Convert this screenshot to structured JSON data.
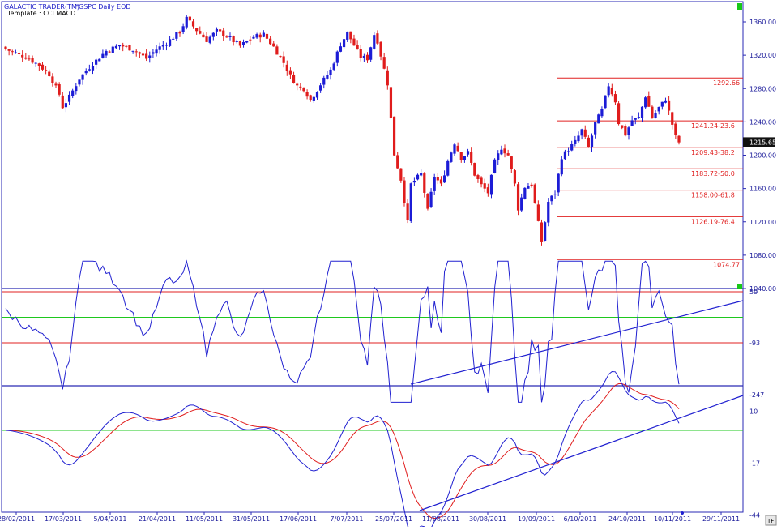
{
  "header": {
    "app": "GALACTIC TRADER(TM)",
    "symbol": "*GSPC Daily EOD",
    "template": "Template : CCI MACD"
  },
  "colors": {
    "up": "#1c1cd6",
    "down": "#e01c1c",
    "axis": "#2a2ab4",
    "fib": "#e02020",
    "green": "#1ec81e",
    "cci": "#2020d0",
    "signal": "#e01c1c"
  },
  "price_axis": {
    "ticks": [
      "1360.00",
      "1320.00",
      "1280.00",
      "1240.00",
      "1200.00",
      "1160.00",
      "1120.00",
      "1080.00",
      "1040.00"
    ],
    "tick_values": [
      1360,
      1320,
      1280,
      1240,
      1200,
      1160,
      1120,
      1080,
      1040
    ],
    "last_price": "1215.65",
    "last_value": 1215.65
  },
  "fib_levels": [
    {
      "label": "1292.66",
      "value": 1292.66
    },
    {
      "label": "1241.24-23.6",
      "value": 1241.24
    },
    {
      "label": "1209.43-38.2",
      "value": 1209.43
    },
    {
      "label": "1183.72-50.0",
      "value": 1183.72
    },
    {
      "label": "1158.00-61.8",
      "value": 1158.0
    },
    {
      "label": "1126.19-76.4",
      "value": 1126.19
    },
    {
      "label": "1074.77",
      "value": 1074.77
    }
  ],
  "cci_axis": {
    "ticks": [
      "59",
      "-93",
      "-247"
    ],
    "tick_values": [
      59,
      -93,
      -247
    ]
  },
  "macd_axis": {
    "ticks": [
      "10",
      "-17",
      "-44"
    ],
    "tick_values": [
      10,
      -17,
      -44
    ]
  },
  "date_axis": {
    "labels": [
      "28/02/2011",
      "17/03/2011",
      "5/04/2011",
      "21/04/2011",
      "11/05/2011",
      "31/05/2011",
      "17/06/2011",
      "7/07/2011",
      "25/07/2011",
      "11/08/2011",
      "30/08/2011",
      "19/09/2011",
      "6/10/2011",
      "24/10/2011",
      "10/11/2011",
      "29/11/2011"
    ]
  },
  "footer": {
    "tf": "TF"
  },
  "chart_data": [
    {
      "type": "candlestick",
      "series_name": "*GSPC Daily EOD",
      "close_path": [
        [
          0,
          1327
        ],
        [
          6,
          1318
        ],
        [
          10,
          1308
        ],
        [
          13,
          1297
        ],
        [
          16,
          1273
        ],
        [
          17,
          1258
        ],
        [
          19,
          1270
        ],
        [
          22,
          1292
        ],
        [
          26,
          1310
        ],
        [
          30,
          1325
        ],
        [
          34,
          1332
        ],
        [
          38,
          1327
        ],
        [
          42,
          1316
        ],
        [
          45,
          1327
        ],
        [
          48,
          1335
        ],
        [
          52,
          1348
        ],
        [
          54,
          1364
        ],
        [
          57,
          1350
        ],
        [
          60,
          1338
        ],
        [
          63,
          1349
        ],
        [
          66,
          1343
        ],
        [
          70,
          1331
        ],
        [
          74,
          1342
        ],
        [
          77,
          1345
        ],
        [
          80,
          1330
        ],
        [
          83,
          1311
        ],
        [
          85,
          1295
        ],
        [
          87,
          1283
        ],
        [
          89,
          1280
        ],
        [
          91,
          1266
        ],
        [
          94,
          1285
        ],
        [
          97,
          1302
        ],
        [
          100,
          1333
        ],
        [
          102,
          1347
        ],
        [
          104,
          1332
        ],
        [
          106,
          1318
        ],
        [
          108,
          1316
        ],
        [
          110,
          1345
        ],
        [
          111,
          1337
        ],
        [
          114,
          1286
        ],
        [
          116,
          1201
        ],
        [
          118,
          1171
        ],
        [
          120,
          1120
        ],
        [
          121,
          1165
        ],
        [
          124,
          1178
        ],
        [
          126,
          1133
        ],
        [
          128,
          1175
        ],
        [
          130,
          1164
        ],
        [
          132,
          1193
        ],
        [
          134,
          1215
        ],
        [
          136,
          1197
        ],
        [
          138,
          1203
        ],
        [
          140,
          1177
        ],
        [
          142,
          1164
        ],
        [
          144,
          1155
        ],
        [
          146,
          1192
        ],
        [
          148,
          1209
        ],
        [
          150,
          1200
        ],
        [
          152,
          1165
        ],
        [
          153,
          1136
        ],
        [
          155,
          1162
        ],
        [
          157,
          1165
        ],
        [
          159,
          1118
        ],
        [
          160,
          1096
        ],
        [
          162,
          1144
        ],
        [
          164,
          1155
        ],
        [
          166,
          1198
        ],
        [
          168,
          1207
        ],
        [
          170,
          1216
        ],
        [
          172,
          1230
        ],
        [
          174,
          1209
        ],
        [
          176,
          1238
        ],
        [
          178,
          1254
        ],
        [
          180,
          1284
        ],
        [
          182,
          1265
        ],
        [
          183,
          1239
        ],
        [
          185,
          1225
        ],
        [
          187,
          1242
        ],
        [
          189,
          1245
        ],
        [
          191,
          1271
        ],
        [
          193,
          1245
        ],
        [
          195,
          1257
        ],
        [
          197,
          1267
        ],
        [
          199,
          1237
        ],
        [
          200,
          1222
        ],
        [
          201,
          1215.65
        ]
      ]
    },
    {
      "type": "line",
      "indicator": "CCI",
      "levels": [
        100,
        -100,
        0
      ]
    },
    {
      "type": "line",
      "indicator": "MACD",
      "levels": [
        0
      ]
    }
  ]
}
